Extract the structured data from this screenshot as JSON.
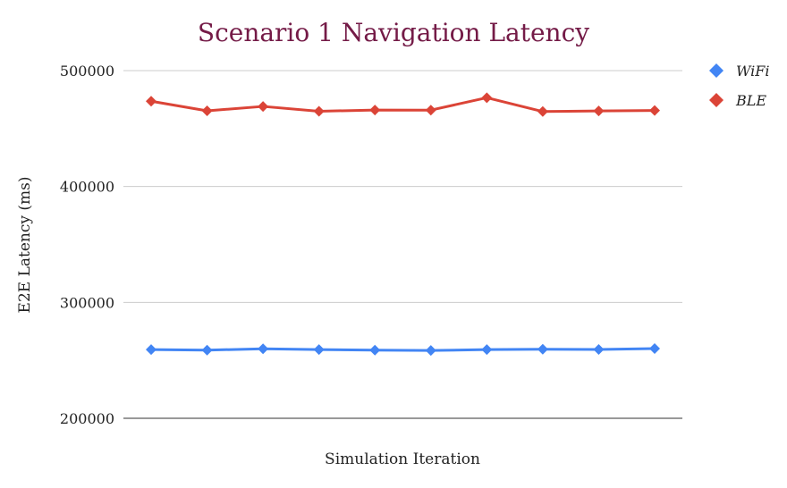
{
  "colors": {
    "title": "#741b47",
    "grid": "#cccccc",
    "axis": "#333333"
  },
  "chart_data": {
    "type": "line",
    "title": "Scenario 1 Navigation Latency",
    "xlabel": "Simulation Iteration",
    "ylabel": "E2E Latency (ms)",
    "ylim": [
      200000,
      500000
    ],
    "yticks": [
      "200000",
      "300000",
      "400000",
      "500000"
    ],
    "x": [
      1,
      2,
      3,
      4,
      5,
      6,
      7,
      8,
      9,
      10
    ],
    "grid": true,
    "legend_position": "top-right",
    "marker": "diamond",
    "series": [
      {
        "name": "WiFi",
        "color": "#4285f4",
        "values": [
          259300,
          258800,
          260000,
          259300,
          258800,
          258500,
          259300,
          259600,
          259400,
          260200
        ]
      },
      {
        "name": "BLE",
        "color": "#db4437",
        "values": [
          473600,
          465300,
          469100,
          464900,
          466000,
          465900,
          476600,
          464700,
          465200,
          465600
        ]
      }
    ]
  }
}
